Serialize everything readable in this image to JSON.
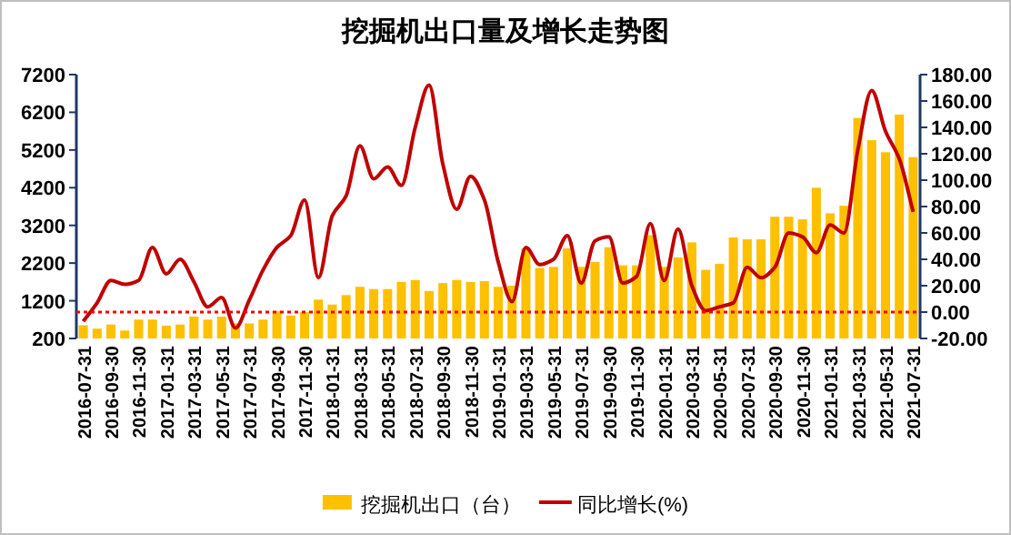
{
  "chart_data": {
    "type": "bar",
    "title": "挖掘机出口量及增长走势图",
    "categories": [
      "2016-07-31",
      null,
      "2016-09-30",
      null,
      "2016-11-30",
      null,
      "2017-01-31",
      null,
      "2017-03-31",
      null,
      "2017-05-31",
      null,
      "2017-07-31",
      null,
      "2017-09-30",
      null,
      "2017-11-30",
      null,
      "2018-01-31",
      null,
      "2018-03-31",
      null,
      "2018-05-31",
      null,
      "2018-07-31",
      null,
      "2018-09-30",
      null,
      "2018-11-30",
      null,
      "2019-01-31",
      null,
      "2019-03-31",
      null,
      "2019-05-31",
      null,
      "2019-07-31",
      null,
      "2019-09-30",
      null,
      "2019-11-30",
      null,
      "2020-01-31",
      null,
      "2020-03-31",
      null,
      "2020-05-31",
      null,
      "2020-07-31",
      null,
      "2020-09-30",
      null,
      "2020-11-30",
      null,
      "2021-01-31",
      null,
      "2021-03-31",
      null,
      "2021-05-31",
      null,
      "2021-07-31"
    ],
    "series": [
      {
        "name": "挖掘机出口（台）",
        "color": "#ffc000",
        "values": [
          550,
          460,
          570,
          410,
          700,
          700,
          540,
          570,
          780,
          700,
          780,
          600,
          600,
          700,
          930,
          810,
          900,
          1230,
          1100,
          1350,
          1570,
          1510,
          1510,
          1700,
          1750,
          1460,
          1670,
          1750,
          1700,
          1720,
          1570,
          1600,
          2590,
          2070,
          2100,
          2590,
          2100,
          2230,
          2620,
          2140,
          2140,
          2940,
          2100,
          2350,
          2750,
          2020,
          2180,
          2880,
          2830,
          2830,
          3430,
          3430,
          3360,
          4200,
          3520,
          3720,
          6050,
          5460,
          5140,
          6140,
          5010
        ]
      },
      {
        "name": "同比增长(%)",
        "type": "line",
        "axis": "y2",
        "color": "#c00000",
        "values": [
          -7,
          7,
          24,
          21,
          24,
          49,
          29,
          40,
          23,
          4,
          11,
          -12,
          9,
          32,
          49,
          58,
          85,
          26,
          73,
          88,
          126,
          101,
          110,
          96,
          140,
          172,
          112,
          78,
          103,
          85,
          38,
          8,
          49,
          36,
          40,
          58,
          22,
          54,
          57,
          22,
          27,
          67,
          24,
          63,
          20,
          1,
          4,
          7,
          34,
          26,
          34,
          60,
          57,
          45,
          66,
          60,
          123,
          168,
          137,
          116,
          76
        ]
      }
    ],
    "ylim": [
      200,
      7200
    ],
    "yticks": [
      200,
      1200,
      2200,
      3200,
      4200,
      5200,
      6200,
      7200
    ],
    "y2lim": [
      -20,
      180
    ],
    "y2ticks": [
      {
        "value": -20,
        "label": "-20.00"
      },
      {
        "value": 0,
        "label": "0.00"
      },
      {
        "value": 20,
        "label": "20.00"
      },
      {
        "value": 40,
        "label": "40.00"
      },
      {
        "value": 60,
        "label": "60.00"
      },
      {
        "value": 80,
        "label": "80.00"
      },
      {
        "value": 100,
        "label": "100.00"
      },
      {
        "value": 120,
        "label": "120.00"
      },
      {
        "value": 140,
        "label": "140.00"
      },
      {
        "value": 160,
        "label": "160.00"
      },
      {
        "value": 180,
        "label": "180.00"
      }
    ],
    "ref_lines": [
      {
        "axis": "y2",
        "value": 0,
        "color": "#ff0000",
        "line_style": "dotted"
      }
    ],
    "legend": "bottom"
  }
}
